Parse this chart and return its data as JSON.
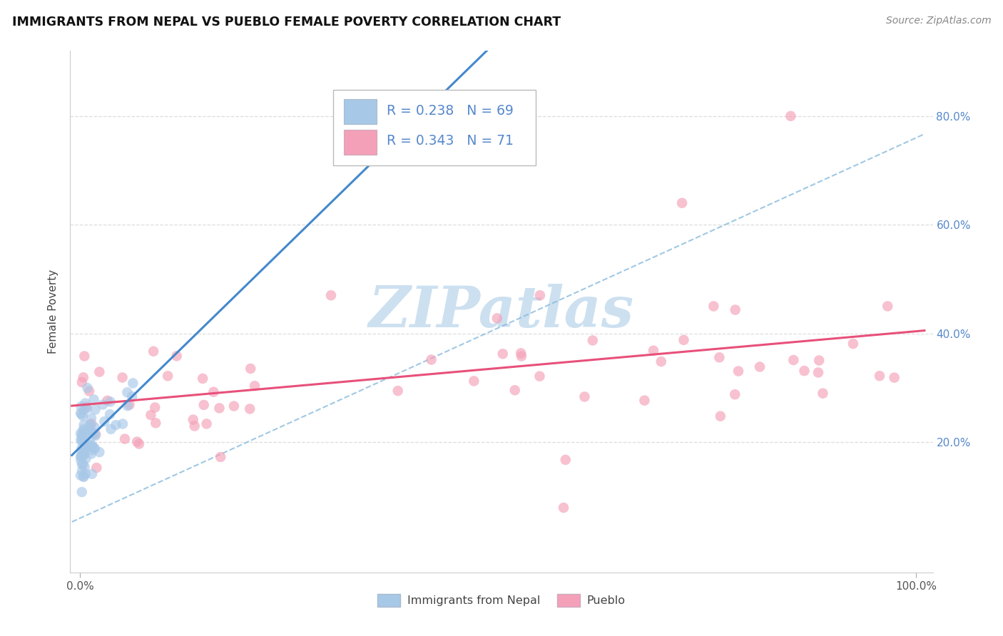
{
  "title": "IMMIGRANTS FROM NEPAL VS PUEBLO FEMALE POVERTY CORRELATION CHART",
  "source": "Source: ZipAtlas.com",
  "ylabel": "Female Poverty",
  "legend_label1": "Immigrants from Nepal",
  "legend_label2": "Pueblo",
  "r1": "0.238",
  "n1": "69",
  "r2": "0.343",
  "n2": "71",
  "color_blue": "#a8c8e8",
  "color_pink": "#f4a0b8",
  "color_blue_line": "#4488cc",
  "color_pink_line": "#e8507a",
  "color_blue_dashed": "#88bbdd",
  "ytick_color": "#5588cc",
  "background": "#ffffff",
  "grid_color": "#dddddd",
  "watermark_color": "#cce0f0"
}
